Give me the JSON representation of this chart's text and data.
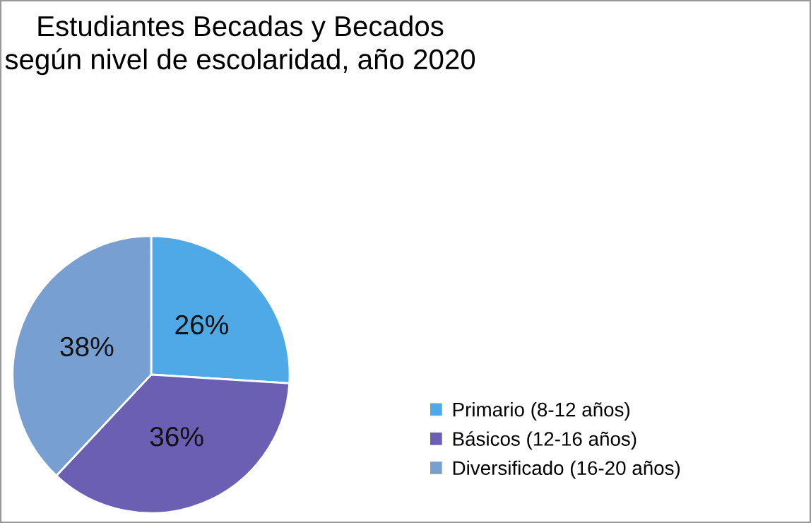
{
  "chart_data": {
    "type": "pie",
    "title": "Estudiantes Becadas y Becados\nsegún nivel de escolaridad, año 2020",
    "categories": [
      "Primario (8-12 años)",
      "Básicos (12-16 años)",
      "Diversificado (16-20 años)"
    ],
    "values": [
      26,
      36,
      38
    ],
    "colors": [
      "#4ea9e6",
      "#6a5fb2",
      "#789fd2"
    ],
    "value_labels": [
      "26%",
      "36%",
      "38%"
    ],
    "legend": "right"
  }
}
